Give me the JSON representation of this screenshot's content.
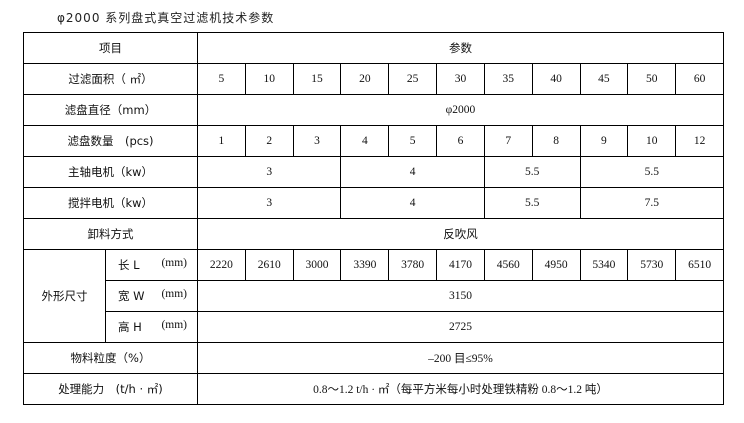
{
  "title": "φ2000 系列盘式真空过滤机技术参数",
  "header": {
    "item": "项目",
    "params": "参数"
  },
  "rows": {
    "area": {
      "label": "过滤面积（ ㎡）",
      "values": [
        "5",
        "10",
        "15",
        "20",
        "25",
        "30",
        "35",
        "40",
        "45",
        "50",
        "60"
      ]
    },
    "diameter": {
      "label": "滤盘直径（mm）",
      "value": "φ2000"
    },
    "discs": {
      "label": "滤盘数量　(pcs)",
      "values": [
        "1",
        "2",
        "3",
        "4",
        "5",
        "6",
        "7",
        "8",
        "9",
        "10",
        "12"
      ]
    },
    "main_motor": {
      "label": "主轴电机（kw）",
      "values": [
        "3",
        "4",
        "5.5",
        "5.5"
      ]
    },
    "mixer_motor": {
      "label": "搅拌电机（kw）",
      "values": [
        "3",
        "4",
        "5.5",
        "7.5"
      ]
    },
    "discharge": {
      "label": "卸料方式",
      "value": "反吹风"
    },
    "dimensions": {
      "label": "外形尺寸",
      "length": {
        "name": "长 L",
        "unit": "(mm)",
        "values": [
          "2220",
          "2610",
          "3000",
          "3390",
          "3780",
          "4170",
          "4560",
          "4950",
          "5340",
          "5730",
          "6510"
        ]
      },
      "width": {
        "name": "宽 W",
        "unit": "(mm)",
        "value": "3150"
      },
      "height": {
        "name": "高 H",
        "unit": "(mm)",
        "value": "2725"
      }
    },
    "granularity": {
      "label": "物料粒度（%）",
      "value": "–200 目≤95%"
    },
    "capacity": {
      "label": "处理能力　(t/h · ㎡)",
      "value": "0.8～1.2 t/h · ㎡（每平方米每小时处理铁精粉 0.8～1.2 吨）"
    }
  }
}
